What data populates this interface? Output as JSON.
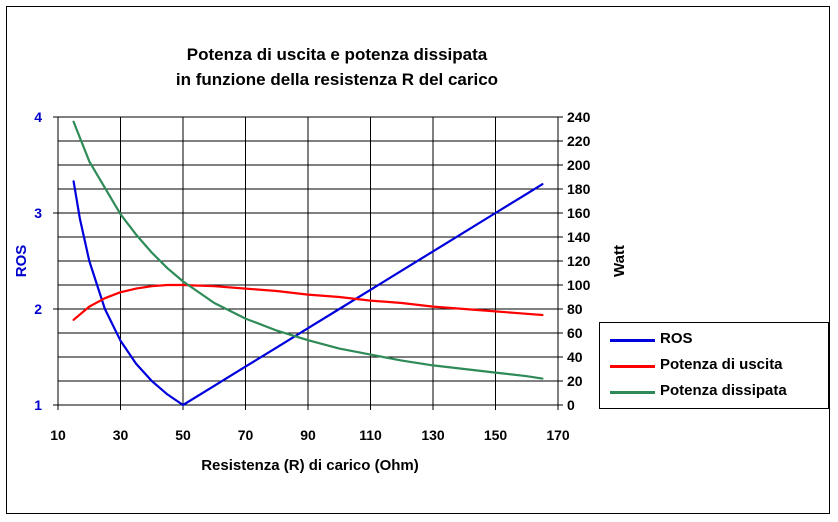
{
  "chart_data": {
    "type": "line",
    "title": "Potenza di uscita e potenza dissipata",
    "subtitle": "in funzione della resistenza R del carico",
    "xlabel": "Resistenza (R) di carico (Ohm)",
    "ylabel_left": "ROS",
    "ylabel_right": "Watt",
    "xlim": [
      10,
      170
    ],
    "ylim_left": [
      1,
      4
    ],
    "ylim_right": [
      0,
      240
    ],
    "x_ticks": [
      10,
      30,
      50,
      70,
      90,
      110,
      130,
      150,
      170
    ],
    "y_left_ticks": [
      1,
      2,
      3,
      4
    ],
    "y_right_ticks": [
      0,
      20,
      40,
      60,
      80,
      100,
      120,
      140,
      160,
      180,
      200,
      220,
      240
    ],
    "grid": true,
    "legend_position": "right",
    "left_axis_color": "#0000cc",
    "series": [
      {
        "name": "ROS",
        "axis": "left",
        "color": "#0000dd",
        "x": [
          15,
          17,
          20,
          25,
          30,
          35,
          40,
          45,
          50,
          60,
          70,
          80,
          90,
          100,
          110,
          120,
          130,
          140,
          150,
          160,
          165
        ],
        "y": [
          3.33,
          2.94,
          2.5,
          2.0,
          1.67,
          1.43,
          1.25,
          1.11,
          1.0,
          1.2,
          1.4,
          1.6,
          1.8,
          2.0,
          2.2,
          2.4,
          2.6,
          2.8,
          3.0,
          3.2,
          3.3
        ]
      },
      {
        "name": "Potenza di uscita",
        "axis": "right",
        "color": "#ff0000",
        "x": [
          15,
          20,
          25,
          30,
          35,
          40,
          45,
          50,
          60,
          70,
          80,
          90,
          100,
          110,
          120,
          130,
          140,
          150,
          160,
          165
        ],
        "y": [
          71,
          82,
          89,
          94,
          97,
          99,
          100,
          100,
          99,
          97,
          95,
          92,
          90,
          87,
          85,
          82,
          80,
          78,
          76,
          75
        ]
      },
      {
        "name": "Potenza dissipata",
        "axis": "right",
        "color": "#2e8b57",
        "x": [
          15,
          20,
          25,
          30,
          35,
          40,
          45,
          50,
          60,
          70,
          80,
          90,
          100,
          110,
          120,
          130,
          140,
          150,
          160,
          165
        ],
        "y": [
          236,
          203,
          181,
          159,
          142,
          127,
          114,
          103,
          85,
          72,
          62,
          54,
          47,
          42,
          37,
          33,
          30,
          27,
          24,
          22
        ]
      }
    ]
  }
}
